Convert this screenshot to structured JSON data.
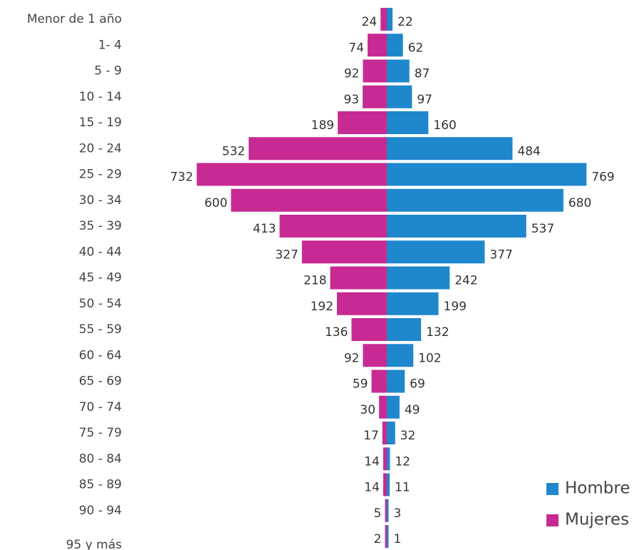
{
  "chart_data": {
    "type": "bar",
    "orientation": "horizontal",
    "layout": "population-pyramid",
    "title": "",
    "xlabel": "",
    "ylabel": "",
    "categories": [
      "Menor de 1 año",
      "1- 4",
      "5 - 9",
      "10 - 14",
      "15 - 19",
      "20 - 24",
      "25 - 29",
      "30 - 34",
      "35 - 39",
      "40 - 44",
      "45 - 49",
      "50 - 54",
      "55 - 59",
      "60 - 64",
      "65 - 69",
      "70 - 74",
      "75 - 79",
      "80 - 84",
      "85 - 89",
      "90 - 94",
      "95 y más"
    ],
    "series": [
      {
        "name": "Mujeres",
        "side": "left",
        "color": "#C72A93",
        "values": [
          24,
          74,
          92,
          93,
          189,
          532,
          732,
          600,
          413,
          327,
          218,
          192,
          136,
          92,
          59,
          30,
          17,
          14,
          14,
          5,
          2
        ]
      },
      {
        "name": "Hombre",
        "side": "right",
        "color": "#1F87CC",
        "values": [
          22,
          62,
          87,
          97,
          160,
          484,
          769,
          680,
          537,
          377,
          242,
          199,
          132,
          102,
          69,
          49,
          32,
          12,
          11,
          3,
          1
        ]
      }
    ],
    "legend": {
      "position": "bottom-right",
      "entries": [
        "Hombre",
        "Mujeres"
      ]
    },
    "grid": false
  }
}
